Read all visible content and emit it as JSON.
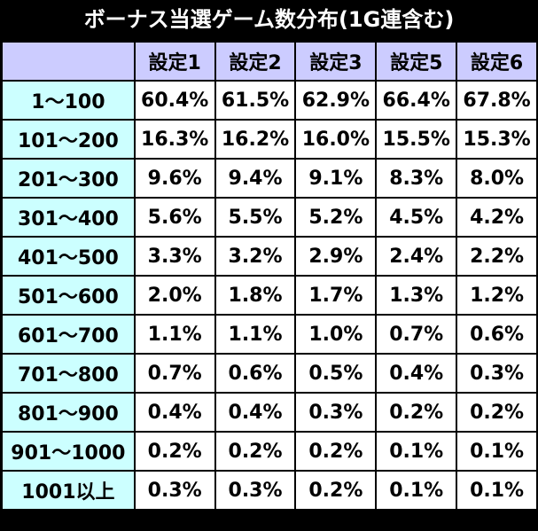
{
  "title": "ボーナス当選ゲーム数分布(1G連含む)",
  "colors": {
    "background": "#000000",
    "header_bg": "#ccccff",
    "row_label_bg": "#ccffff",
    "cell_bg": "#ffffff"
  },
  "table": {
    "corner": "",
    "columns": [
      "設定1",
      "設定2",
      "設定3",
      "設定5",
      "設定6"
    ],
    "rows": [
      {
        "label": "1～100",
        "values": [
          "60.4%",
          "61.5%",
          "62.9%",
          "66.4%",
          "67.8%"
        ]
      },
      {
        "label": "101～200",
        "values": [
          "16.3%",
          "16.2%",
          "16.0%",
          "15.5%",
          "15.3%"
        ]
      },
      {
        "label": "201～300",
        "values": [
          "9.6%",
          "9.4%",
          "9.1%",
          "8.3%",
          "8.0%"
        ]
      },
      {
        "label": "301～400",
        "values": [
          "5.6%",
          "5.5%",
          "5.2%",
          "4.5%",
          "4.2%"
        ]
      },
      {
        "label": "401～500",
        "values": [
          "3.3%",
          "3.2%",
          "2.9%",
          "2.4%",
          "2.2%"
        ]
      },
      {
        "label": "501～600",
        "values": [
          "2.0%",
          "1.8%",
          "1.7%",
          "1.3%",
          "1.2%"
        ]
      },
      {
        "label": "601～700",
        "values": [
          "1.1%",
          "1.1%",
          "1.0%",
          "0.7%",
          "0.6%"
        ]
      },
      {
        "label": "701～800",
        "values": [
          "0.7%",
          "0.6%",
          "0.5%",
          "0.4%",
          "0.3%"
        ]
      },
      {
        "label": "801～900",
        "values": [
          "0.4%",
          "0.4%",
          "0.3%",
          "0.2%",
          "0.2%"
        ]
      },
      {
        "label": "901～1000",
        "values": [
          "0.2%",
          "0.2%",
          "0.2%",
          "0.1%",
          "0.1%"
        ]
      },
      {
        "label": "1001以上",
        "values": [
          "0.3%",
          "0.3%",
          "0.2%",
          "0.1%",
          "0.1%"
        ]
      }
    ]
  }
}
